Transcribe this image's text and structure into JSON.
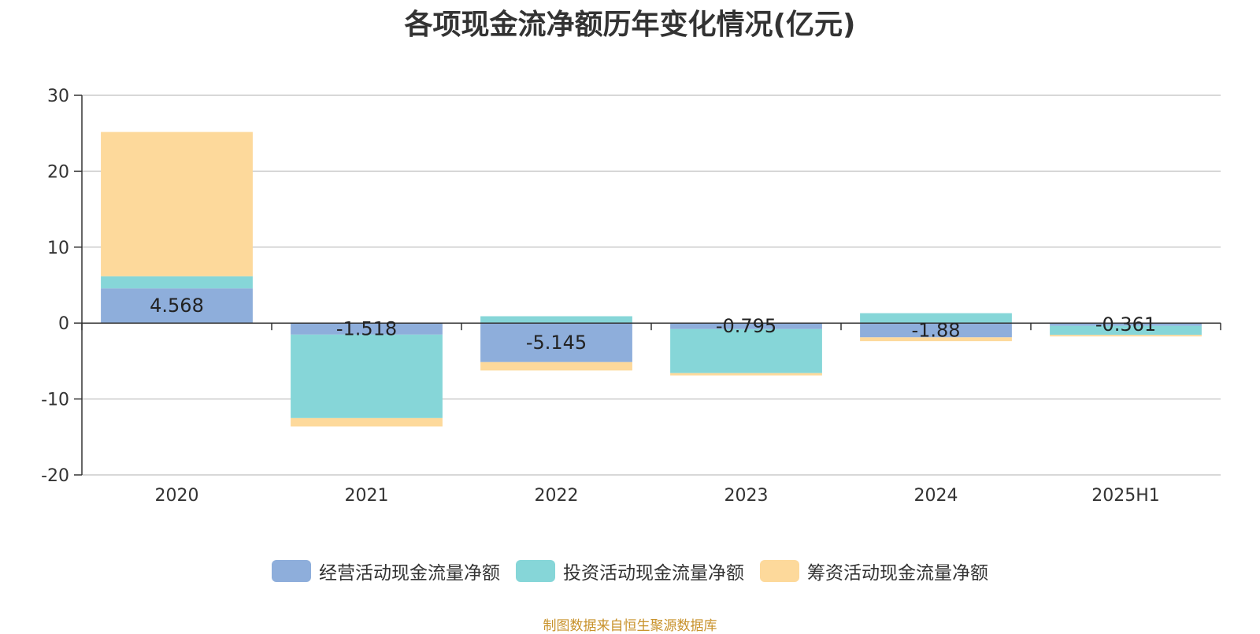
{
  "chart_data": {
    "type": "bar",
    "stacked": true,
    "title": "各项现金流净额历年变化情况(亿元)",
    "xlabel": "",
    "ylabel": "",
    "categories": [
      "2020",
      "2021",
      "2022",
      "2023",
      "2024",
      "2025H1"
    ],
    "ylim": [
      -20,
      30
    ],
    "yticks": [
      30,
      20,
      10,
      0,
      -10,
      -20
    ],
    "grid": true,
    "legend_position": "bottom",
    "series": [
      {
        "name": "经营活动现金流量净额",
        "color": "#8eaedb",
        "values": [
          4.568,
          -1.518,
          -5.145,
          -0.795,
          -1.88,
          -0.361
        ],
        "labels": [
          "4.568",
          "-1.518",
          "-5.145",
          "-0.795",
          "-1.88",
          "-0.361"
        ]
      },
      {
        "name": "投资活动现金流量净额",
        "color": "#86d6d8",
        "values": [
          1.6,
          -11.0,
          0.9,
          -5.8,
          1.3,
          -1.2
        ],
        "labels": []
      },
      {
        "name": "筹资活动现金流量净额",
        "color": "#fdd99b",
        "values": [
          19.0,
          -1.1,
          -1.1,
          -0.3,
          -0.5,
          -0.2
        ],
        "labels": []
      }
    ]
  },
  "source_note": "制图数据来自恒生聚源数据库"
}
